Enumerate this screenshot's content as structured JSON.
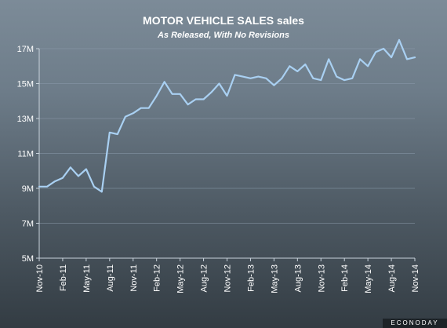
{
  "chart_data": {
    "type": "line",
    "title": "MOTOR VEHICLE SALES sales",
    "subtitle": "As Released, With No Revisions",
    "xlabel": "",
    "ylabel": "",
    "grid": true,
    "ylim": [
      5,
      17
    ],
    "y_tick_values": [
      5,
      7,
      9,
      11,
      13,
      15,
      17
    ],
    "y_tick_labels": [
      "5M",
      "7M",
      "9M",
      "11M",
      "13M",
      "15M",
      "17M"
    ],
    "x": [
      "Nov-10",
      "Dec-10",
      "Jan-11",
      "Feb-11",
      "Mar-11",
      "Apr-11",
      "May-11",
      "Jun-11",
      "Jul-11",
      "Aug-11",
      "Sep-11",
      "Oct-11",
      "Nov-11",
      "Dec-11",
      "Jan-12",
      "Feb-12",
      "Mar-12",
      "Apr-12",
      "May-12",
      "Jun-12",
      "Jul-12",
      "Aug-12",
      "Sep-12",
      "Oct-12",
      "Nov-12",
      "Dec-12",
      "Jan-13",
      "Feb-13",
      "Mar-13",
      "Apr-13",
      "May-13",
      "Jun-13",
      "Jul-13",
      "Aug-13",
      "Sep-13",
      "Oct-13",
      "Nov-13",
      "Dec-13",
      "Jan-14",
      "Feb-14",
      "Mar-14",
      "Apr-14",
      "May-14",
      "Jun-14",
      "Jul-14",
      "Aug-14",
      "Sep-14",
      "Oct-14",
      "Nov-14"
    ],
    "x_tick_labels": [
      "Nov-10",
      "Feb-11",
      "May-11",
      "Aug-11",
      "Nov-11",
      "Feb-12",
      "May-12",
      "Aug-12",
      "Nov-12",
      "Feb-13",
      "May-13",
      "Aug-13",
      "Nov-13",
      "Feb-14",
      "May-14",
      "Aug-14",
      "Nov-14"
    ],
    "series": [
      {
        "name": "",
        "color": "#a9d0f2",
        "values": [
          9.1,
          9.1,
          9.4,
          9.6,
          10.2,
          9.7,
          10.1,
          9.1,
          8.8,
          12.2,
          12.1,
          13.1,
          13.3,
          13.6,
          13.6,
          14.3,
          15.1,
          14.4,
          14.4,
          13.8,
          14.1,
          14.1,
          14.5,
          15.0,
          14.3,
          15.5,
          15.4,
          15.3,
          15.4,
          15.3,
          14.9,
          15.3,
          16.0,
          15.7,
          16.1,
          15.3,
          15.2,
          16.4,
          15.4,
          15.2,
          15.3,
          16.4,
          16.0,
          16.8,
          17.0,
          16.5,
          17.5,
          16.4,
          16.5
        ]
      }
    ]
  },
  "branding": {
    "logo_text": "ECONODAY"
  }
}
